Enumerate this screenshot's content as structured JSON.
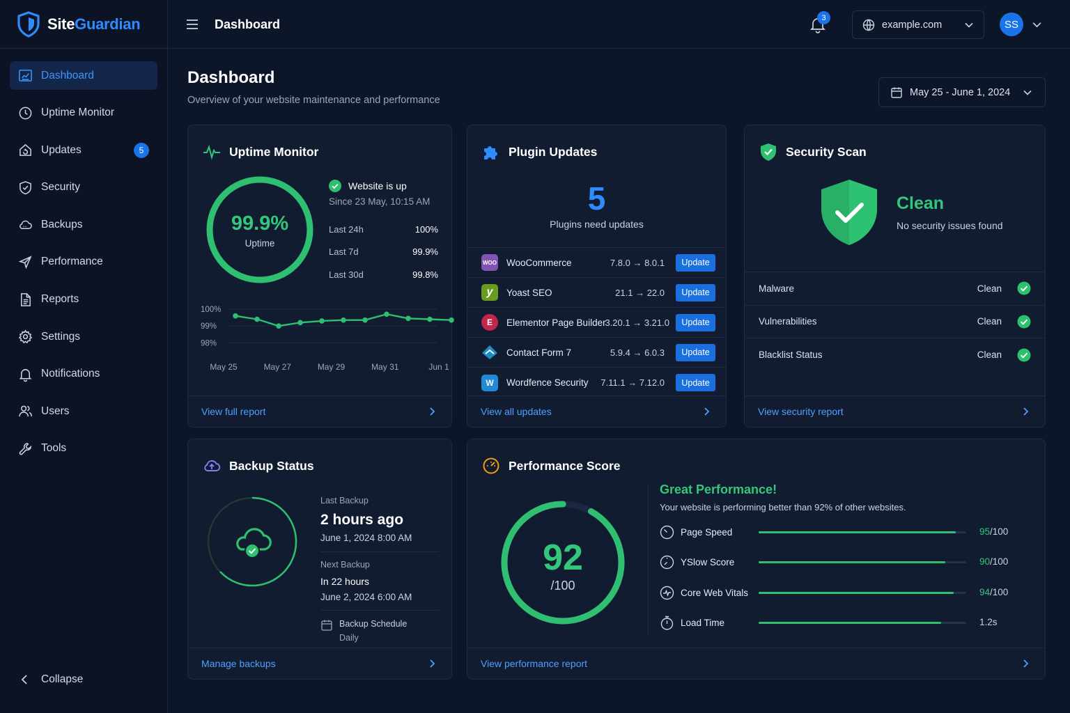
{
  "brand": {
    "part1": "Site",
    "part2": "Guardian"
  },
  "sidebar": {
    "items": [
      {
        "label": "Dashboard"
      },
      {
        "label": "Uptime Monitor"
      },
      {
        "label": "Updates",
        "badge": "5"
      },
      {
        "label": "Security"
      },
      {
        "label": "Backups"
      },
      {
        "label": "Performance"
      },
      {
        "label": "Reports"
      },
      {
        "label": "Settings"
      },
      {
        "label": "Notifications"
      },
      {
        "label": "Users"
      },
      {
        "label": "Tools"
      }
    ],
    "collapse_label": "Collapse"
  },
  "topbar": {
    "title": "Dashboard",
    "notification_count": "3",
    "site": "example.com",
    "avatar_initials": "SS"
  },
  "page": {
    "title": "Dashboard",
    "subtitle": "Overview of your website maintenance and performance",
    "date_range": "May 25 - June 1, 2024"
  },
  "uptime": {
    "title": "Uptime Monitor",
    "percent": "99.9%",
    "percent_label": "Uptime",
    "status": "Website is up",
    "since": "Since 23 May, 10:15 AM",
    "rows": [
      {
        "k": "Last 24h",
        "v": "100%"
      },
      {
        "k": "Last 7d",
        "v": "99.9%"
      },
      {
        "k": "Last 30d",
        "v": "99.8%"
      }
    ],
    "footer": "View full report"
  },
  "chart_data": {
    "type": "line",
    "x": [
      "May 25",
      "May 26",
      "May 26",
      "May 27",
      "May 28",
      "May 29",
      "May 30",
      "May 30",
      "May 31",
      "Jun 1",
      "Jun 1"
    ],
    "x_ticks": [
      "May 25",
      "May 27",
      "May 29",
      "May 31",
      "Jun 1"
    ],
    "y_ticks": [
      "100%",
      "99%",
      "98%"
    ],
    "ylim": [
      97.6,
      100
    ],
    "series": [
      {
        "values": [
          99.6,
          99.4,
          99.0,
          99.2,
          99.3,
          99.35,
          99.35,
          99.7,
          99.45,
          99.4,
          99.35
        ]
      }
    ],
    "color": "#2fbf71"
  },
  "plugins": {
    "title": "Plugin Updates",
    "count": "5",
    "count_label": "Plugins need updates",
    "button_label": "Update",
    "items": [
      {
        "name": "WooCommerce",
        "from": "7.8.0",
        "to": "8.0.1",
        "icon": "woo-icon",
        "icon_text": "WOO",
        "color": "#7f54b3"
      },
      {
        "name": "Yoast SEO",
        "from": "21.1",
        "to": "22.0",
        "icon": "yoast-icon",
        "icon_text": "y",
        "color": "#6a9a1f"
      },
      {
        "name": "Elementor Page Builder",
        "from": "3.20.1",
        "to": "3.21.0",
        "icon": "elementor-icon",
        "icon_text": "E",
        "color": "#c2264b"
      },
      {
        "name": "Contact Form 7",
        "from": "5.9.4",
        "to": "6.0.3",
        "icon": "contact-form-icon",
        "icon_text": "",
        "color": "#1e8cbe"
      },
      {
        "name": "Wordfence Security",
        "from": "7.11.1",
        "to": "7.12.0",
        "icon": "wordfence-icon",
        "icon_text": "W",
        "color": "#1f8ad6"
      }
    ],
    "footer": "View all updates"
  },
  "security": {
    "title": "Security Scan",
    "status": "Clean",
    "status_sub": "No security issues found",
    "rows": [
      {
        "k": "Malware",
        "v": "Clean"
      },
      {
        "k": "Vulnerabilities",
        "v": "Clean"
      },
      {
        "k": "Blacklist Status",
        "v": "Clean"
      }
    ],
    "footer": "View security report"
  },
  "backup": {
    "title": "Backup Status",
    "last_label": "Last Backup",
    "last_value": "2 hours ago",
    "last_date": "June 1, 2024 8:00 AM",
    "next_label": "Next Backup",
    "next_value": "In 22 hours",
    "next_date": "June 2, 2024 6:00 AM",
    "schedule_label": "Backup Schedule",
    "schedule_value": "Daily",
    "footer": "Manage backups"
  },
  "performance": {
    "title": "Performance Score",
    "score": "92",
    "score_den": "/100",
    "headline": "Great Performance!",
    "desc": "Your website is performing better than 92% of other websites.",
    "metrics": [
      {
        "name": "Page Speed",
        "score": "95",
        "den": "/100",
        "fraction": 0.95,
        "icon": "speedometer-icon"
      },
      {
        "name": "YSlow Score",
        "score": "90",
        "den": "/100",
        "fraction": 0.9,
        "icon": "gauge-icon"
      },
      {
        "name": "Core Web Vitals",
        "score": "94",
        "den": "/100",
        "fraction": 0.94,
        "icon": "pulse-icon"
      },
      {
        "name": "Load Time",
        "score": "",
        "den": "1.2s",
        "fraction": 0.88,
        "icon": "stopwatch-icon"
      }
    ],
    "footer": "View performance report"
  },
  "colors": {
    "accent": "#2f8cff",
    "success": "#34c77b",
    "bg": "#0d1628",
    "card": "#111c31"
  }
}
